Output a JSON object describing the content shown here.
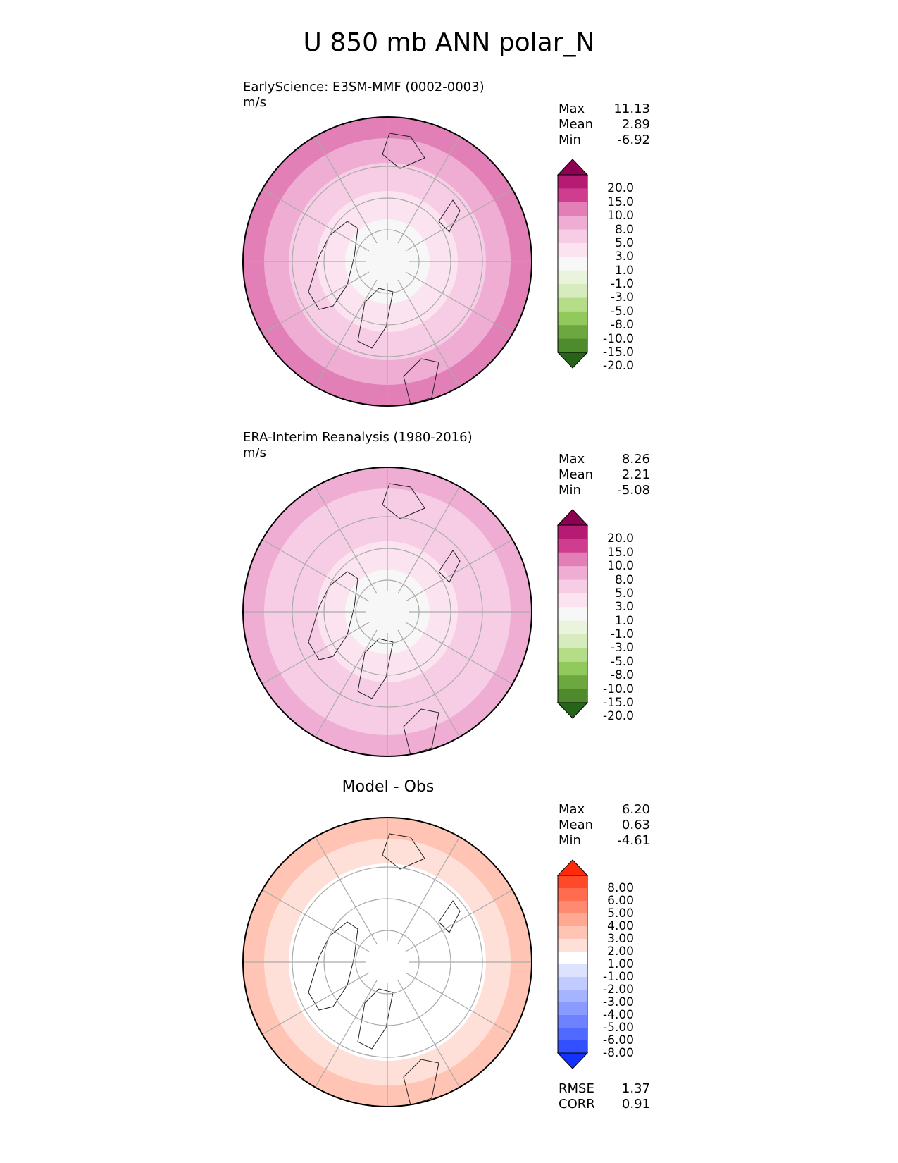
{
  "title": "U 850 mb ANN polar_N",
  "panels": [
    {
      "title": "EarlyScience: E3SM-MMF (0002-0003)",
      "units": "m/s",
      "stats": [
        [
          "Max",
          "11.13"
        ],
        [
          "Mean",
          "2.89"
        ],
        [
          "Min",
          "-6.92"
        ]
      ],
      "colorbar": {
        "colors": [
          "#8e0152",
          "#b61b73",
          "#cf3e8e",
          "#e27fb7",
          "#efadd4",
          "#f6cde4",
          "#fbe4f0",
          "#f7f7f7",
          "#eaf4dc",
          "#d6ecbe",
          "#b5dd87",
          "#92c95c",
          "#6da73f",
          "#4e8b2c",
          "#276419"
        ],
        "ticks": [
          "20.0",
          "15.0",
          "10.0",
          "8.0",
          "5.0",
          "3.0",
          "1.0",
          "-1.0",
          "-3.0",
          "-5.0",
          "-8.0",
          "-10.0",
          "-15.0",
          "-20.0"
        ]
      },
      "rings": [
        "#e27fb7",
        "#efadd4",
        "#f6cde4",
        "#fbe4f0",
        "#f7f7f7"
      ]
    },
    {
      "title": "ERA-Interim Reanalysis (1980-2016)",
      "units": "m/s",
      "stats": [
        [
          "Max",
          "8.26"
        ],
        [
          "Mean",
          "2.21"
        ],
        [
          "Min",
          "-5.08"
        ]
      ],
      "colorbar": {
        "colors": [
          "#8e0152",
          "#b61b73",
          "#cf3e8e",
          "#e27fb7",
          "#efadd4",
          "#f6cde4",
          "#fbe4f0",
          "#f7f7f7",
          "#eaf4dc",
          "#d6ecbe",
          "#b5dd87",
          "#92c95c",
          "#6da73f",
          "#4e8b2c",
          "#276419"
        ],
        "ticks": [
          "20.0",
          "15.0",
          "10.0",
          "8.0",
          "5.0",
          "3.0",
          "1.0",
          "-1.0",
          "-3.0",
          "-5.0",
          "-8.0",
          "-10.0",
          "-15.0",
          "-20.0"
        ]
      },
      "rings": [
        "#efadd4",
        "#f6cde4",
        "#f6cde4",
        "#fbe4f0",
        "#f7f7f7"
      ]
    },
    {
      "title": "Model - Obs",
      "units": "",
      "stats": [
        [
          "Max",
          "6.20"
        ],
        [
          "Mean",
          "0.63"
        ],
        [
          "Min",
          "-4.61"
        ]
      ],
      "colorbar": {
        "colors": [
          "#ff2a0a",
          "#ff4a2a",
          "#ff6c50",
          "#ff8a72",
          "#ffa892",
          "#ffc4b4",
          "#ffe0d8",
          "#ffffff",
          "#dde3ff",
          "#c2cbff",
          "#a6b3ff",
          "#8a9bff",
          "#6e82ff",
          "#5069ff",
          "#3250ff",
          "#1432ff"
        ],
        "ticks": [
          "8.00",
          "6.00",
          "5.00",
          "4.00",
          "3.00",
          "2.00",
          "1.00",
          "-1.00",
          "-2.00",
          "-3.00",
          "-4.00",
          "-5.00",
          "-6.00",
          "-8.00"
        ]
      },
      "rings": [
        "#ffc4b4",
        "#ffe0d8",
        "#ffffff",
        "#ffffff",
        "#ffffff"
      ],
      "metrics": [
        [
          "RMSE",
          "1.37"
        ],
        [
          "CORR",
          "0.91"
        ]
      ]
    }
  ]
}
